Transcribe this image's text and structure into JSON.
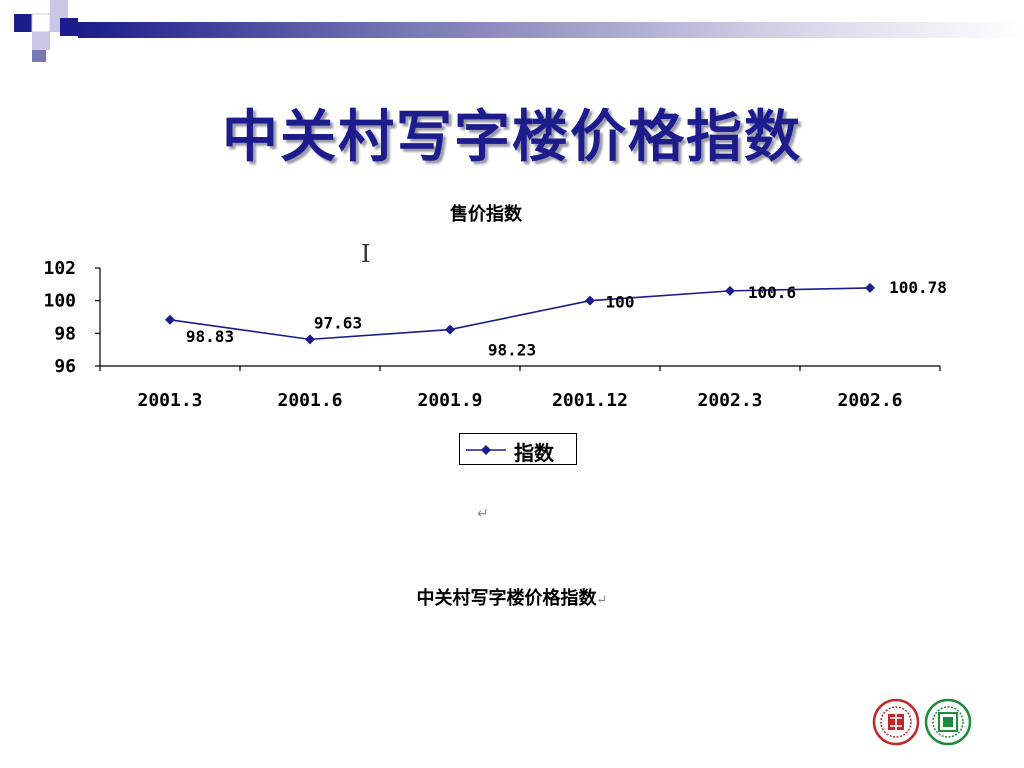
{
  "slide": {
    "title": "中关村写字楼价格指数",
    "caption": "中关村写字楼价格指数",
    "return_mark": "↵",
    "caption_mark": "↵"
  },
  "colors": {
    "title": "#1c1c8c",
    "series": "#1c1c8c",
    "banner_dark": "#1c1c8c",
    "banner_light": "#c8c8e6",
    "logo_red": "#c0282a",
    "logo_green": "#1f8a3c"
  },
  "icons": {
    "cursor": "text-cursor-icon",
    "logo_left": "university-seal-red",
    "logo_right": "university-seal-green"
  },
  "chart_data": {
    "type": "line",
    "title": "售价指数",
    "categories": [
      "2001.3",
      "2001.6",
      "2001.9",
      "2001.12",
      "2002.3",
      "2002.6"
    ],
    "series": [
      {
        "name": "指数",
        "values": [
          98.83,
          97.63,
          98.23,
          100,
          100.6,
          100.78
        ]
      }
    ],
    "data_labels": [
      "98.83",
      "97.63",
      "98.23",
      "100",
      "100.6",
      "100.78"
    ],
    "yticks": [
      96,
      98,
      100,
      102
    ],
    "ylim": [
      96,
      102
    ],
    "xlabel": "",
    "ylabel": "",
    "grid": false,
    "legend": "bottom",
    "marker": "diamond"
  }
}
